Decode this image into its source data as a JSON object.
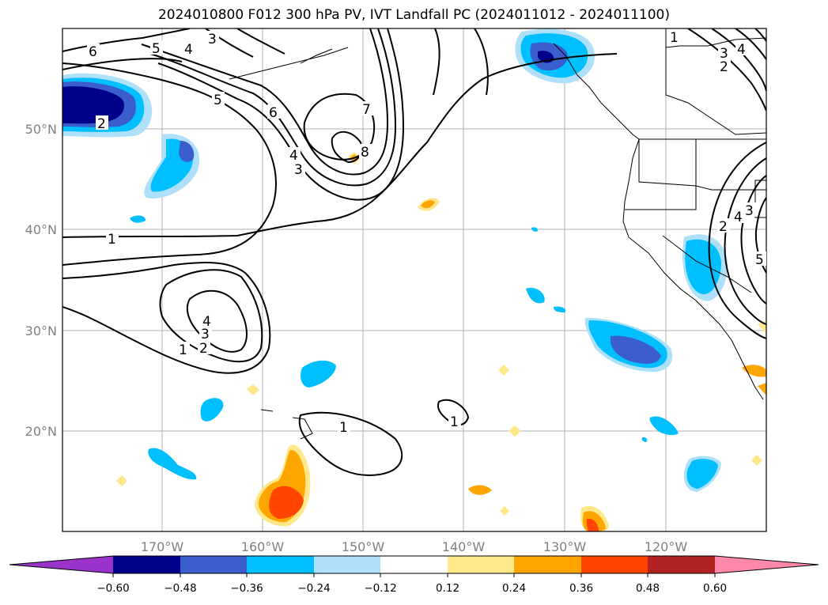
{
  "title": "2024010800 F012 300 hPa PV, IVT Landfall PC (2024011012 - 2024011100)",
  "map": {
    "lon_labels": [
      "170°W",
      "160°W",
      "150°W",
      "140°W",
      "130°W",
      "120°W"
    ],
    "lat_labels": [
      "50°N",
      "40°N",
      "30°N",
      "20°N"
    ],
    "contour_labels": [
      "1",
      "1",
      "1",
      "1",
      "2",
      "2",
      "2",
      "3",
      "3",
      "3",
      "3",
      "4",
      "4",
      "4",
      "4",
      "5",
      "5",
      "6",
      "6",
      "7",
      "8",
      "1",
      "2",
      "3",
      "4",
      "5"
    ]
  },
  "colorbar": {
    "ticks": [
      "−0.60",
      "−0.48",
      "−0.36",
      "−0.24",
      "−0.12",
      "0.12",
      "0.24",
      "0.36",
      "0.48",
      "0.60"
    ],
    "colors": [
      "#9933cc",
      "#00008b",
      "#3a5fcd",
      "#00bfff",
      "#aee0fa",
      "#ffffff",
      "#ffe88a",
      "#ffa500",
      "#ff4500",
      "#b22222",
      "#ff88aa"
    ]
  }
}
